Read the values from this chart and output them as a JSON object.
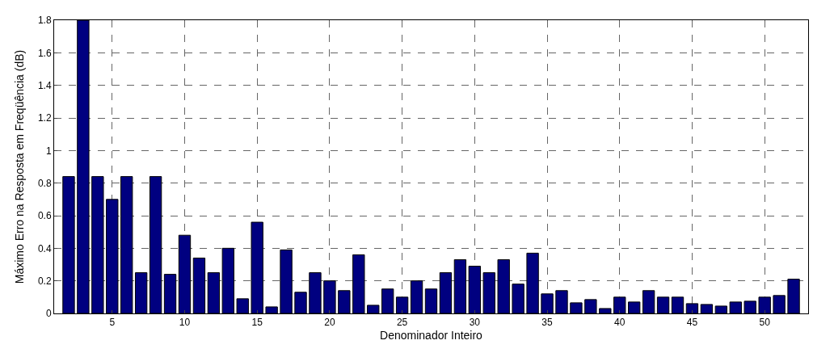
{
  "chart_data": {
    "type": "bar",
    "xlabel": "Denominador Inteiro",
    "ylabel": "Máximo Erro na Resposta em Freqüência (dB)",
    "x": [
      2,
      3,
      4,
      5,
      6,
      7,
      8,
      9,
      10,
      11,
      12,
      13,
      14,
      15,
      16,
      17,
      18,
      19,
      20,
      21,
      22,
      23,
      24,
      25,
      26,
      27,
      28,
      29,
      30,
      31,
      32,
      33,
      34,
      35,
      36,
      37,
      38,
      39,
      40,
      41,
      42,
      43,
      44,
      45,
      46,
      47,
      48,
      49,
      50,
      51,
      52
    ],
    "values": [
      0.84,
      1.8,
      0.84,
      0.7,
      0.84,
      0.25,
      0.84,
      0.24,
      0.48,
      0.34,
      0.25,
      0.4,
      0.09,
      0.56,
      0.04,
      0.39,
      0.13,
      0.25,
      0.2,
      0.14,
      0.36,
      0.05,
      0.15,
      0.1,
      0.2,
      0.15,
      0.25,
      0.33,
      0.29,
      0.25,
      0.33,
      0.18,
      0.37,
      0.12,
      0.14,
      0.065,
      0.085,
      0.03,
      0.1,
      0.07,
      0.14,
      0.1,
      0.1,
      0.06,
      0.055,
      0.045,
      0.07,
      0.075,
      0.1,
      0.11,
      0.21
    ],
    "color": "#000080",
    "xlim": [
      1,
      53
    ],
    "xticks": [
      5,
      10,
      15,
      20,
      25,
      30,
      35,
      40,
      45,
      50
    ],
    "ylim": [
      0,
      1.8
    ],
    "yticks": [
      0,
      0.2,
      0.4,
      0.6,
      0.8,
      1,
      1.2,
      1.4,
      1.6,
      1.8
    ],
    "grid": true,
    "line_style": "dashed"
  }
}
